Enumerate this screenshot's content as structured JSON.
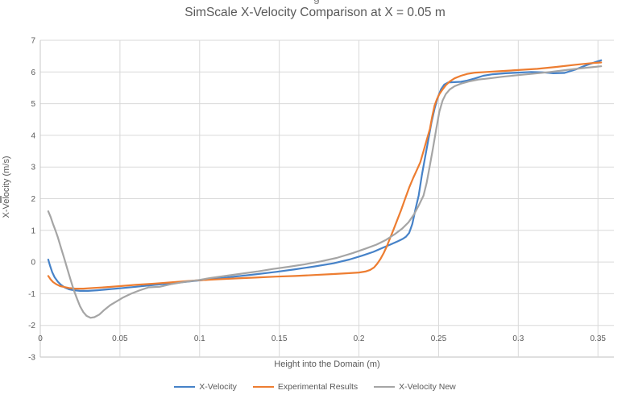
{
  "page": {
    "background": "#FFFFFF"
  },
  "top_fragment": {
    "text": "g"
  },
  "chart_data": {
    "type": "line",
    "title": "SimScale X-Velocity Comparison at X = 0.05 m",
    "xlabel": "Height into the Domain (m)",
    "ylabel": "X-Velocity (m/s)",
    "xlim": [
      0,
      0.36
    ],
    "ylim": [
      -3,
      7
    ],
    "grid": true,
    "legend_position": "bottom",
    "xticks": {
      "values": [
        0,
        0.05,
        0.1,
        0.15,
        0.2,
        0.25,
        0.3,
        0.35
      ],
      "labels": [
        "0",
        "0.05",
        "0.1",
        "0.15",
        "0.2",
        "0.25",
        "0.3",
        "0.35"
      ]
    },
    "yticks": {
      "values": [
        -3,
        -2,
        -1,
        0,
        1,
        2,
        3,
        4,
        5,
        6,
        7
      ],
      "labels": [
        "-3",
        "-2",
        "-1",
        "0",
        "1",
        "2",
        "3",
        "4",
        "5",
        "6",
        "7"
      ]
    },
    "colors": {
      "text": "#595959",
      "gridline": "#D9D9D9",
      "axis_line": "#BFBFBF"
    },
    "series": [
      {
        "name": "X-Velocity",
        "color": "#4682C8",
        "points": [
          [
            0.005,
            0.08
          ],
          [
            0.006,
            -0.1
          ],
          [
            0.0075,
            -0.32
          ],
          [
            0.009,
            -0.48
          ],
          [
            0.011,
            -0.62
          ],
          [
            0.013,
            -0.72
          ],
          [
            0.0155,
            -0.81
          ],
          [
            0.018,
            -0.86
          ],
          [
            0.021,
            -0.89
          ],
          [
            0.025,
            -0.91
          ],
          [
            0.03,
            -0.91
          ],
          [
            0.036,
            -0.89
          ],
          [
            0.043,
            -0.86
          ],
          [
            0.05,
            -0.83
          ],
          [
            0.06,
            -0.78
          ],
          [
            0.072,
            -0.72
          ],
          [
            0.085,
            -0.66
          ],
          [
            0.098,
            -0.59
          ],
          [
            0.11,
            -0.53
          ],
          [
            0.122,
            -0.46
          ],
          [
            0.135,
            -0.39
          ],
          [
            0.148,
            -0.31
          ],
          [
            0.16,
            -0.23
          ],
          [
            0.172,
            -0.14
          ],
          [
            0.184,
            -0.04
          ],
          [
            0.194,
            0.08
          ],
          [
            0.202,
            0.2
          ],
          [
            0.209,
            0.32
          ],
          [
            0.215,
            0.45
          ],
          [
            0.2205,
            0.57
          ],
          [
            0.2245,
            0.66
          ],
          [
            0.2275,
            0.73
          ],
          [
            0.2295,
            0.8
          ],
          [
            0.2315,
            0.92
          ],
          [
            0.2335,
            1.2
          ],
          [
            0.2355,
            1.68
          ],
          [
            0.2375,
            2.1
          ],
          [
            0.2395,
            2.75
          ],
          [
            0.2415,
            3.3
          ],
          [
            0.2435,
            3.85
          ],
          [
            0.2455,
            4.4
          ],
          [
            0.2475,
            4.85
          ],
          [
            0.2495,
            5.2
          ],
          [
            0.2515,
            5.45
          ],
          [
            0.2535,
            5.6
          ],
          [
            0.256,
            5.67
          ],
          [
            0.26,
            5.68
          ],
          [
            0.264,
            5.69
          ],
          [
            0.268,
            5.73
          ],
          [
            0.273,
            5.8
          ],
          [
            0.278,
            5.88
          ],
          [
            0.284,
            5.93
          ],
          [
            0.292,
            5.96
          ],
          [
            0.3,
            5.98
          ],
          [
            0.308,
            6.0
          ],
          [
            0.315,
            5.99
          ],
          [
            0.322,
            5.96
          ],
          [
            0.329,
            5.97
          ],
          [
            0.336,
            6.08
          ],
          [
            0.343,
            6.22
          ],
          [
            0.349,
            6.32
          ],
          [
            0.352,
            6.37
          ]
        ]
      },
      {
        "name": "Experimental Results",
        "color": "#ED7D31",
        "points": [
          [
            0.005,
            -0.44
          ],
          [
            0.0065,
            -0.55
          ],
          [
            0.008,
            -0.63
          ],
          [
            0.01,
            -0.7
          ],
          [
            0.0125,
            -0.76
          ],
          [
            0.015,
            -0.79
          ],
          [
            0.018,
            -0.82
          ],
          [
            0.022,
            -0.84
          ],
          [
            0.027,
            -0.84
          ],
          [
            0.033,
            -0.82
          ],
          [
            0.04,
            -0.8
          ],
          [
            0.05,
            -0.76
          ],
          [
            0.06,
            -0.72
          ],
          [
            0.072,
            -0.68
          ],
          [
            0.085,
            -0.63
          ],
          [
            0.098,
            -0.58
          ],
          [
            0.11,
            -0.55
          ],
          [
            0.122,
            -0.52
          ],
          [
            0.135,
            -0.49
          ],
          [
            0.148,
            -0.46
          ],
          [
            0.16,
            -0.44
          ],
          [
            0.172,
            -0.41
          ],
          [
            0.184,
            -0.38
          ],
          [
            0.194,
            -0.35
          ],
          [
            0.2,
            -0.33
          ],
          [
            0.204,
            -0.3
          ],
          [
            0.207,
            -0.25
          ],
          [
            0.2095,
            -0.17
          ],
          [
            0.2115,
            -0.05
          ],
          [
            0.2135,
            0.1
          ],
          [
            0.2155,
            0.28
          ],
          [
            0.2175,
            0.5
          ],
          [
            0.2195,
            0.75
          ],
          [
            0.2215,
            1.0
          ],
          [
            0.224,
            1.32
          ],
          [
            0.2265,
            1.65
          ],
          [
            0.229,
            2.0
          ],
          [
            0.2315,
            2.35
          ],
          [
            0.234,
            2.65
          ],
          [
            0.2365,
            2.92
          ],
          [
            0.2385,
            3.15
          ],
          [
            0.2405,
            3.5
          ],
          [
            0.2425,
            3.85
          ],
          [
            0.2445,
            4.2
          ],
          [
            0.246,
            4.6
          ],
          [
            0.2475,
            4.95
          ],
          [
            0.249,
            5.15
          ],
          [
            0.2505,
            5.3
          ],
          [
            0.2525,
            5.45
          ],
          [
            0.2545,
            5.58
          ],
          [
            0.257,
            5.7
          ],
          [
            0.26,
            5.8
          ],
          [
            0.264,
            5.88
          ],
          [
            0.268,
            5.94
          ],
          [
            0.273,
            5.98
          ],
          [
            0.28,
            6.0
          ],
          [
            0.29,
            6.03
          ],
          [
            0.3,
            6.06
          ],
          [
            0.312,
            6.1
          ],
          [
            0.324,
            6.16
          ],
          [
            0.336,
            6.23
          ],
          [
            0.346,
            6.28
          ],
          [
            0.352,
            6.3
          ]
        ]
      },
      {
        "name": "X-Velocity New",
        "color": "#A5A5A5",
        "points": [
          [
            0.005,
            1.6
          ],
          [
            0.0065,
            1.42
          ],
          [
            0.008,
            1.2
          ],
          [
            0.0095,
            1.0
          ],
          [
            0.011,
            0.78
          ],
          [
            0.013,
            0.45
          ],
          [
            0.015,
            0.12
          ],
          [
            0.017,
            -0.22
          ],
          [
            0.019,
            -0.56
          ],
          [
            0.021,
            -0.88
          ],
          [
            0.023,
            -1.15
          ],
          [
            0.025,
            -1.4
          ],
          [
            0.027,
            -1.58
          ],
          [
            0.029,
            -1.7
          ],
          [
            0.0315,
            -1.76
          ],
          [
            0.034,
            -1.74
          ],
          [
            0.037,
            -1.66
          ],
          [
            0.04,
            -1.52
          ],
          [
            0.044,
            -1.36
          ],
          [
            0.048,
            -1.24
          ],
          [
            0.052,
            -1.12
          ],
          [
            0.057,
            -1.0
          ],
          [
            0.062,
            -0.9
          ],
          [
            0.068,
            -0.8
          ],
          [
            0.075,
            -0.78
          ],
          [
            0.082,
            -0.7
          ],
          [
            0.09,
            -0.63
          ],
          [
            0.098,
            -0.58
          ],
          [
            0.107,
            -0.5
          ],
          [
            0.116,
            -0.44
          ],
          [
            0.126,
            -0.37
          ],
          [
            0.136,
            -0.3
          ],
          [
            0.146,
            -0.22
          ],
          [
            0.156,
            -0.15
          ],
          [
            0.166,
            -0.07
          ],
          [
            0.176,
            0.02
          ],
          [
            0.186,
            0.13
          ],
          [
            0.196,
            0.28
          ],
          [
            0.204,
            0.42
          ],
          [
            0.211,
            0.55
          ],
          [
            0.217,
            0.7
          ],
          [
            0.2225,
            0.88
          ],
          [
            0.227,
            1.05
          ],
          [
            0.231,
            1.25
          ],
          [
            0.2345,
            1.5
          ],
          [
            0.2375,
            1.78
          ],
          [
            0.2405,
            2.1
          ],
          [
            0.2425,
            2.5
          ],
          [
            0.2445,
            3.05
          ],
          [
            0.2465,
            3.6
          ],
          [
            0.2485,
            4.2
          ],
          [
            0.2505,
            4.75
          ],
          [
            0.2525,
            5.1
          ],
          [
            0.2545,
            5.3
          ],
          [
            0.257,
            5.45
          ],
          [
            0.26,
            5.55
          ],
          [
            0.264,
            5.63
          ],
          [
            0.269,
            5.7
          ],
          [
            0.275,
            5.76
          ],
          [
            0.282,
            5.8
          ],
          [
            0.29,
            5.85
          ],
          [
            0.3,
            5.9
          ],
          [
            0.31,
            5.95
          ],
          [
            0.32,
            6.0
          ],
          [
            0.33,
            6.06
          ],
          [
            0.34,
            6.12
          ],
          [
            0.348,
            6.16
          ],
          [
            0.352,
            6.18
          ]
        ]
      }
    ]
  }
}
